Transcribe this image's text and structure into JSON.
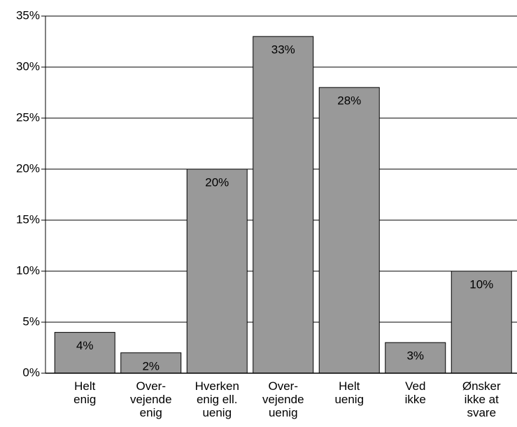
{
  "chart_data": {
    "type": "bar",
    "categories": [
      "Helt\nenig",
      "Over-\nvejende\nenig",
      "Hverken\nenig ell.\nuenig",
      "Over-\nvejende\nuenig",
      "Helt\nuenig",
      "Ved\nikke",
      "Ønsker\nikke at\nsvare"
    ],
    "values": [
      4,
      2,
      20,
      33,
      28,
      3,
      10
    ],
    "value_labels": [
      "4%",
      "2%",
      "20%",
      "33%",
      "28%",
      "3%",
      "10%"
    ],
    "color": "#999999",
    "ylim": [
      0,
      35
    ],
    "yticks": [
      {
        "value": 0,
        "label": "0%"
      },
      {
        "value": 5,
        "label": "5%"
      },
      {
        "value": 10,
        "label": "10%"
      },
      {
        "value": 15,
        "label": "15%"
      },
      {
        "value": 20,
        "label": "20%"
      },
      {
        "value": 25,
        "label": "25%"
      },
      {
        "value": 30,
        "label": "30%"
      },
      {
        "value": 35,
        "label": "35%"
      }
    ],
    "grid": true
  }
}
